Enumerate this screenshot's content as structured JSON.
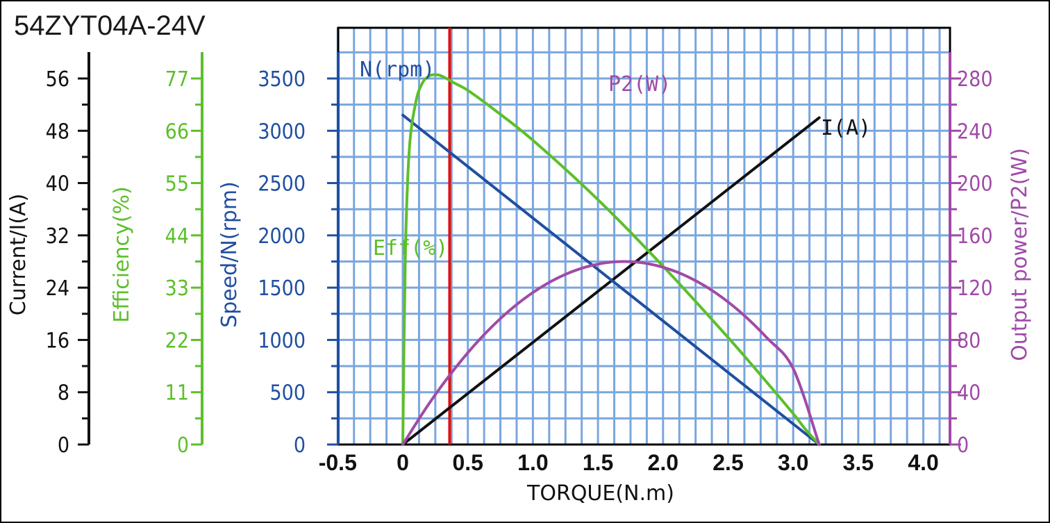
{
  "title": "54ZYT04A-24V",
  "colors": {
    "grid": "#7aa6dd",
    "frame": "#000000",
    "current": "#111111",
    "efficiency": "#5cbf2a",
    "speed": "#1f4fa0",
    "power": "#a04aa8",
    "marker": "#e01010"
  },
  "chart_data": {
    "type": "line",
    "title": "54ZYT04A-24V",
    "xlabel": "TORQUE(N.m)",
    "xlim": [
      -0.5,
      4.25
    ],
    "x_ticks": [
      "-0.5",
      "0",
      "0.5",
      "1.0",
      "1.5",
      "2.0",
      "2.5",
      "3.0",
      "3.5",
      "4.0"
    ],
    "x_tick_values": [
      -0.5,
      0,
      0.5,
      1.0,
      1.5,
      2.0,
      2.5,
      3.0,
      3.5,
      4.0
    ],
    "marker_x": 0.36,
    "axes": {
      "current": {
        "label": "Current/I(A)",
        "ticks": [
          "0",
          "8",
          "16",
          "24",
          "32",
          "40",
          "48",
          "56"
        ],
        "tick_values": [
          0,
          8,
          16,
          24,
          32,
          40,
          48,
          56
        ]
      },
      "efficiency": {
        "label": "Efficiency(%)",
        "ticks": [
          "0",
          "11",
          "22",
          "33",
          "44",
          "55",
          "66",
          "77"
        ],
        "tick_values": [
          0,
          11,
          22,
          33,
          44,
          55,
          66,
          77
        ]
      },
      "speed": {
        "label": "Speed/N(rpm)",
        "ticks": [
          "0",
          "500",
          "1000",
          "1500",
          "2000",
          "2500",
          "3000",
          "3500"
        ],
        "tick_values": [
          0,
          500,
          1000,
          1500,
          2000,
          2500,
          3000,
          3500
        ]
      },
      "power": {
        "label": "Output power/P2(W)",
        "ticks": [
          "0",
          "40",
          "80",
          "120",
          "160",
          "200",
          "240",
          "280"
        ],
        "tick_values": [
          0,
          40,
          80,
          120,
          160,
          200,
          240,
          280
        ]
      }
    },
    "series": [
      {
        "name": "I(A)",
        "axis": "current",
        "label": "I(A)",
        "x": [
          0,
          3.2
        ],
        "values": [
          0,
          50.0
        ]
      },
      {
        "name": "N(rpm)",
        "axis": "speed",
        "label": "N(rpm)",
        "x": [
          0,
          3.2
        ],
        "values": [
          3150,
          0
        ]
      },
      {
        "name": "Eff(%)",
        "axis": "efficiency",
        "label": "Eff(%)",
        "x": [
          0,
          0.02,
          0.05,
          0.1,
          0.15,
          0.2,
          0.25,
          0.3,
          0.4,
          0.5,
          0.7,
          1.0,
          1.5,
          2.0,
          2.5,
          2.8,
          3.0,
          3.1,
          3.2
        ],
        "values": [
          0,
          40,
          62,
          72,
          76,
          77.5,
          77.8,
          77.5,
          76,
          74.5,
          70.5,
          64,
          51.5,
          37.5,
          22.5,
          13,
          6.5,
          3,
          0
        ]
      },
      {
        "name": "P2(W)",
        "axis": "power",
        "label": "P2(W)",
        "x": [
          0,
          0.2,
          0.4,
          0.6,
          0.8,
          1.0,
          1.2,
          1.4,
          1.6,
          1.8,
          2.0,
          2.2,
          2.4,
          2.6,
          2.8,
          3.0,
          3.2
        ],
        "values": [
          0,
          31.0,
          58.1,
          81.4,
          100.8,
          116.3,
          127.9,
          135.6,
          139.5,
          139.5,
          135.6,
          127.9,
          116.3,
          100.8,
          81.4,
          58.1,
          0
        ]
      }
    ]
  }
}
